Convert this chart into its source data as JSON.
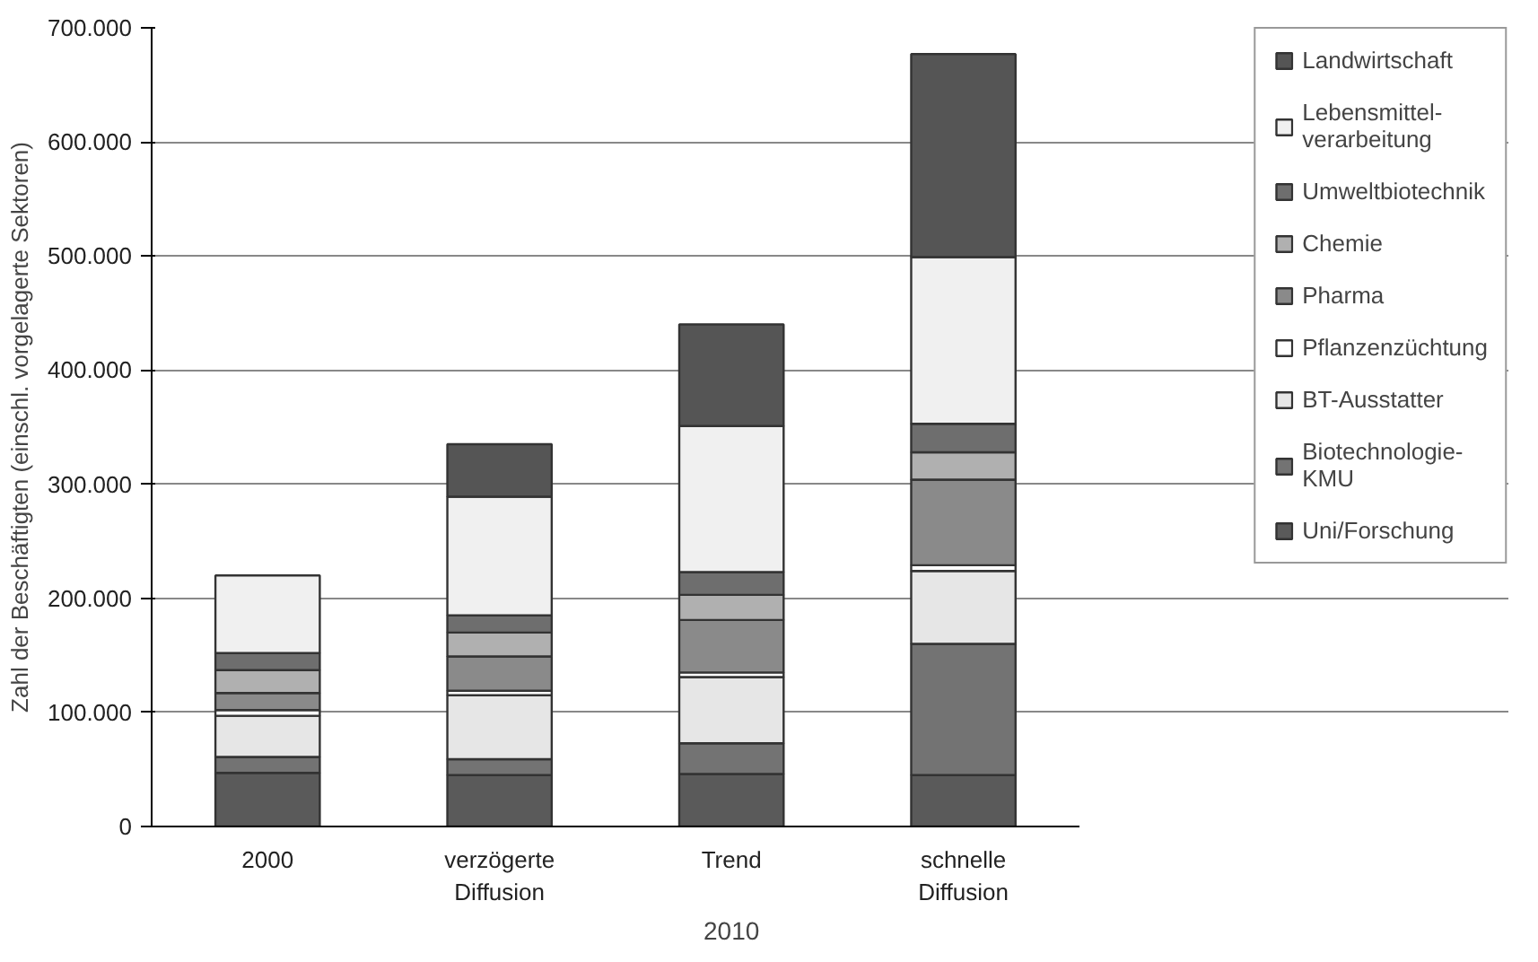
{
  "chart_data": {
    "type": "bar",
    "stacked": true,
    "ylabel": "Zahl der Beschäftigten (einschl. vorgelagerte Sektoren)",
    "categories": [
      "2000",
      "verzögerte\nDiffusion",
      "Trend",
      "schnelle\nDiffusion"
    ],
    "series": [
      {
        "name": "Uni/Forschung",
        "color": "#5a5a5a",
        "values": [
          47000,
          45000,
          46000,
          45000
        ]
      },
      {
        "name": "Biotechnologie-\nKMU",
        "color": "#737373",
        "values": [
          14000,
          14000,
          27000,
          115000
        ]
      },
      {
        "name": "BT-Ausstatter",
        "color": "#e6e6e6",
        "values": [
          36000,
          56000,
          58000,
          64000
        ]
      },
      {
        "name": "Pflanzenzüchtung",
        "color": "#ffffff",
        "values": [
          5000,
          4000,
          4000,
          5000
        ]
      },
      {
        "name": "Pharma",
        "color": "#8a8a8a",
        "values": [
          15000,
          30000,
          46000,
          75000
        ]
      },
      {
        "name": "Chemie",
        "color": "#b0b0b0",
        "values": [
          20000,
          21000,
          22000,
          24000
        ]
      },
      {
        "name": "Umweltbiotechnik",
        "color": "#6e6e6e",
        "values": [
          15000,
          15000,
          20000,
          25000
        ]
      },
      {
        "name": "Lebensmittel-\nverarbeitung",
        "color": "#f0f0f0",
        "values": [
          68000,
          104000,
          128000,
          146000
        ]
      },
      {
        "name": "Landwirtschaft",
        "color": "#555555",
        "values": [
          0,
          46000,
          89000,
          178000
        ]
      }
    ],
    "ylim": [
      0,
      700000
    ],
    "yticks": [
      {
        "value": 0,
        "label": "0"
      },
      {
        "value": 100000,
        "label": "100.000"
      },
      {
        "value": 200000,
        "label": "200.000"
      },
      {
        "value": 300000,
        "label": "300.000"
      },
      {
        "value": 400000,
        "label": "400.000"
      },
      {
        "value": 500000,
        "label": "500.000"
      },
      {
        "value": 600000,
        "label": "600.000"
      },
      {
        "value": 700000,
        "label": "700.000"
      }
    ],
    "grid": "y",
    "legend": "right",
    "annotations": [
      "2010"
    ]
  }
}
